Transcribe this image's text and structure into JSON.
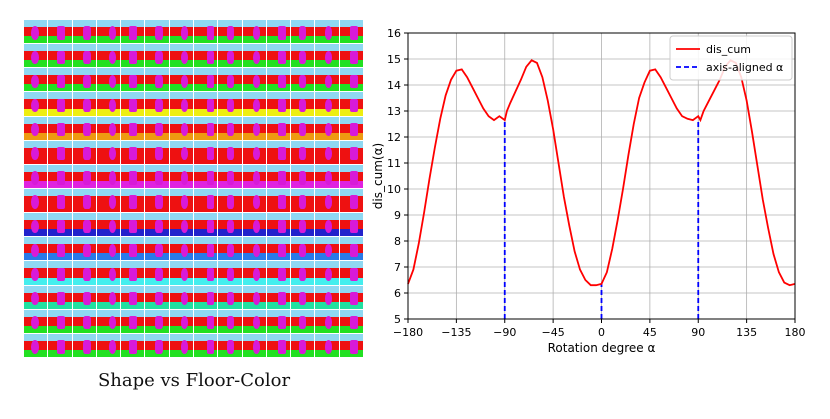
{
  "image_grid": {
    "caption": "Shape vs Floor-Color",
    "rows": 14,
    "cols": 14,
    "sky_color": "#8fd8f2",
    "wall_color": "#ee1111",
    "object_color": "#d81ad8",
    "floor_colors": [
      "#22e022",
      "#22e022",
      "#22e022",
      "#eeee11",
      "#ee9a11",
      "#ee1111",
      "#e022e0",
      "#ee1111",
      "#2222cc",
      "#2a7ae8",
      "#44eeee",
      "#22e0a0",
      "#22e022",
      "#22e022"
    ]
  },
  "chart_data": {
    "type": "line",
    "xlabel": "Rotation degree α",
    "ylabel": "dis_cum(α)",
    "xlim": [
      -180,
      180
    ],
    "ylim": [
      5,
      16
    ],
    "xticks": [
      "−180",
      "−135",
      "−90",
      "−45",
      "0",
      "45",
      "90",
      "135",
      "180"
    ],
    "xtick_values": [
      -180,
      -135,
      -90,
      -45,
      0,
      45,
      90,
      135,
      180
    ],
    "yticks": [
      "5",
      "6",
      "7",
      "8",
      "9",
      "10",
      "11",
      "12",
      "13",
      "14",
      "15",
      "16"
    ],
    "ytick_values": [
      5,
      6,
      7,
      8,
      9,
      10,
      11,
      12,
      13,
      14,
      15,
      16
    ],
    "grid": true,
    "legend": {
      "placement": "top-right",
      "entries": [
        {
          "label": "dis_cum",
          "color": "#ff0000",
          "style": "solid"
        },
        {
          "label": "axis-aligned α",
          "color": "#0000ff",
          "style": "dashed"
        }
      ]
    },
    "series": [
      {
        "name": "dis_cum",
        "color": "#ff0000",
        "x": [
          -180,
          -175,
          -170,
          -165,
          -160,
          -155,
          -150,
          -145,
          -140,
          -135,
          -130,
          -125,
          -120,
          -115,
          -110,
          -105,
          -100,
          -95,
          -90,
          -88,
          -85,
          -80,
          -75,
          -70,
          -65,
          -60,
          -55,
          -50,
          -45,
          -40,
          -35,
          -30,
          -25,
          -20,
          -15,
          -10,
          -5,
          0,
          5,
          10,
          15,
          20,
          25,
          30,
          35,
          40,
          45,
          50,
          55,
          60,
          65,
          70,
          75,
          80,
          85,
          90,
          92,
          95,
          100,
          105,
          110,
          115,
          120,
          125,
          130,
          135,
          140,
          145,
          150,
          155,
          160,
          165,
          170,
          175,
          180
        ],
        "y": [
          6.35,
          6.9,
          7.9,
          9.1,
          10.4,
          11.6,
          12.7,
          13.6,
          14.2,
          14.55,
          14.6,
          14.3,
          13.9,
          13.5,
          13.1,
          12.8,
          12.65,
          12.8,
          12.65,
          13.0,
          13.3,
          13.75,
          14.2,
          14.7,
          14.95,
          14.85,
          14.3,
          13.4,
          12.3,
          11.0,
          9.7,
          8.6,
          7.6,
          6.9,
          6.5,
          6.3,
          6.3,
          6.35,
          6.8,
          7.7,
          8.8,
          10.0,
          11.3,
          12.5,
          13.5,
          14.1,
          14.55,
          14.6,
          14.3,
          13.9,
          13.5,
          13.1,
          12.8,
          12.7,
          12.65,
          12.8,
          12.65,
          13.0,
          13.4,
          13.8,
          14.2,
          14.7,
          14.95,
          14.85,
          14.3,
          13.4,
          12.2,
          10.9,
          9.6,
          8.5,
          7.5,
          6.8,
          6.4,
          6.3,
          6.35
        ]
      },
      {
        "name": "axis-aligned α",
        "color": "#0000ff",
        "x": [
          -90,
          0,
          90
        ],
        "y": [
          12.65,
          6.35,
          12.65
        ]
      }
    ]
  }
}
